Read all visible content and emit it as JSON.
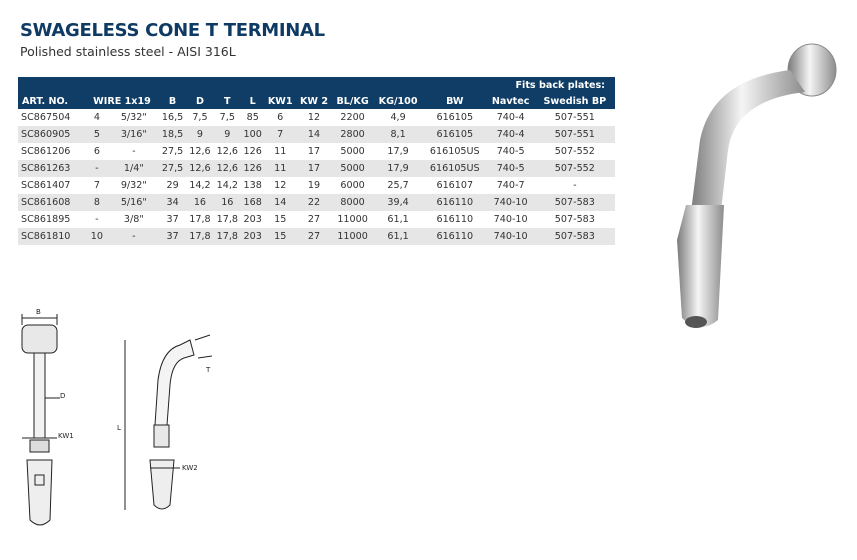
{
  "title": "SWAGELESS CONE T TERMINAL",
  "subtitle": "Polished stainless steel - AISI 316L",
  "table": {
    "group_header": "Fits back plates:",
    "headers": [
      "ART. NO.",
      "WIRE 1x19",
      "",
      "B",
      "D",
      "T",
      "L",
      "KW1",
      "KW 2",
      "BL/KG",
      "KG/100",
      "BW",
      "Navtec",
      "Swedish BP"
    ],
    "rows": [
      [
        "SC867504",
        "4",
        "5/32\"",
        "16,5",
        "7,5",
        "7,5",
        "85",
        "6",
        "12",
        "2200",
        "4,9",
        "616105",
        "740-4",
        "507-551"
      ],
      [
        "SC860905",
        "5",
        "3/16\"",
        "18,5",
        "9",
        "9",
        "100",
        "7",
        "14",
        "2800",
        "8,1",
        "616105",
        "740-4",
        "507-551"
      ],
      [
        "SC861206",
        "6",
        "-",
        "27,5",
        "12,6",
        "12,6",
        "126",
        "11",
        "17",
        "5000",
        "17,9",
        "616105US",
        "740-5",
        "507-552"
      ],
      [
        "SC861263",
        "-",
        "1/4\"",
        "27,5",
        "12,6",
        "12,6",
        "126",
        "11",
        "17",
        "5000",
        "17,9",
        "616105US",
        "740-5",
        "507-552"
      ],
      [
        "SC861407",
        "7",
        "9/32\"",
        "29",
        "14,2",
        "14,2",
        "138",
        "12",
        "19",
        "6000",
        "25,7",
        "616107",
        "740-7",
        "-"
      ],
      [
        "SC861608",
        "8",
        "5/16\"",
        "34",
        "16",
        "16",
        "168",
        "14",
        "22",
        "8000",
        "39,4",
        "616110",
        "740-10",
        "507-583"
      ],
      [
        "SC861895",
        "-",
        "3/8\"",
        "37",
        "17,8",
        "17,8",
        "203",
        "15",
        "27",
        "11000",
        "61,1",
        "616110",
        "740-10",
        "507-583"
      ],
      [
        "SC861810",
        "10",
        "-",
        "37",
        "17,8",
        "17,8",
        "203",
        "15",
        "27",
        "11000",
        "61,1",
        "616110",
        "740-10",
        "507-583"
      ]
    ]
  },
  "drawing_labels": {
    "b": "B",
    "d": "D",
    "kw1": "KW1",
    "l": "L",
    "t": "T",
    "kw2": "KW2"
  },
  "colors": {
    "header": "#0f3d66",
    "row_alt": "#e6e6e6"
  }
}
